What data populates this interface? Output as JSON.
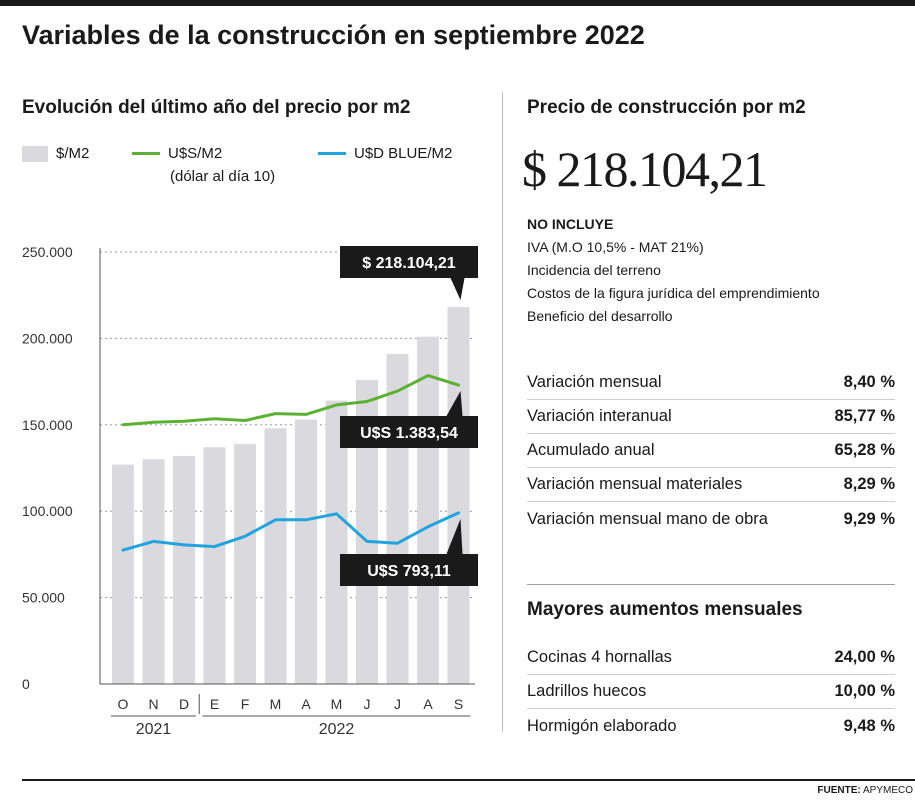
{
  "title": "Variables de la construcción en septiembre 2022",
  "left_panel": {
    "title": "Evolución del último año del precio por m2",
    "legend": {
      "ars": "$/M2",
      "usd": "U$S/M2",
      "usd_note": "(dólar al día 10)",
      "blue": "U$D BLUE/M2"
    }
  },
  "colors": {
    "bars": "#d9d9de",
    "usd_line": "#5cb135",
    "blue_line": "#21a4de",
    "callout_bg": "#1a1a1a",
    "callout_text": "#ffffff"
  },
  "chart_data": {
    "type": "bar",
    "categories": [
      "O",
      "N",
      "D",
      "E",
      "F",
      "M",
      "A",
      "M",
      "J",
      "J",
      "A",
      "S"
    ],
    "year_groups": [
      {
        "label": "2021",
        "start": 0,
        "end": 2
      },
      {
        "label": "2022",
        "start": 3,
        "end": 11
      }
    ],
    "series": [
      {
        "name": "$/M2",
        "type": "bar",
        "values": [
          127000,
          130000,
          132000,
          137000,
          139000,
          148000,
          153000,
          164000,
          176000,
          191000,
          201000,
          218104.21
        ]
      },
      {
        "name": "U$S/M2",
        "type": "line",
        "values": [
          150000,
          151500,
          152000,
          153500,
          152500,
          156500,
          156000,
          161500,
          163500,
          169500,
          178500,
          173000
        ]
      },
      {
        "name": "U$D BLUE/M2",
        "type": "line",
        "values": [
          77500,
          82500,
          80500,
          79500,
          85500,
          95000,
          95000,
          98500,
          82500,
          81500,
          91000,
          99000
        ]
      }
    ],
    "yticks": [
      "250.000",
      "200.000",
      "150.000",
      "100.000",
      "50.000",
      "0"
    ],
    "ytick_values": [
      250000,
      200000,
      150000,
      100000,
      50000,
      0
    ],
    "ylim": [
      0,
      250000
    ],
    "grid": "dotted",
    "callouts": [
      {
        "text": "$ 218.104,21",
        "series": 0,
        "index": 11
      },
      {
        "text": "U$S 1.383,54",
        "series": 1,
        "index": 11
      },
      {
        "text": "U$S 793,11",
        "series": 2,
        "index": 11
      }
    ]
  },
  "right_panel": {
    "title": "Precio de construcción por m2",
    "price": "$ 218.104,21",
    "exclusions_heading": "NO INCLUYE",
    "exclusions": [
      "IVA (M.O 10,5% - MAT 21%)",
      "Incidencia del terreno",
      "Costos de la figura jurídica del emprendimiento",
      "Beneficio del desarrollo"
    ],
    "stats": [
      {
        "label": "Variación mensual",
        "value": "8,40 %"
      },
      {
        "label": "Variación interanual",
        "value": "85,77 %"
      },
      {
        "label": "Acumulado anual",
        "value": "65,28 %"
      },
      {
        "label": "Variación mensual materiales",
        "value": "8,29 %"
      },
      {
        "label": "Variación mensual mano de obra",
        "value": "9,29 %"
      }
    ],
    "increases_title": "Mayores aumentos mensuales",
    "increases": [
      {
        "label": "Cocinas 4 hornallas",
        "value": "24,00 %"
      },
      {
        "label": "Ladrillos huecos",
        "value": "10,00 %"
      },
      {
        "label": "Hormigón elaborado",
        "value": "9,48 %"
      }
    ]
  },
  "source": {
    "label": "FUENTE:",
    "name": "APYMECO"
  }
}
